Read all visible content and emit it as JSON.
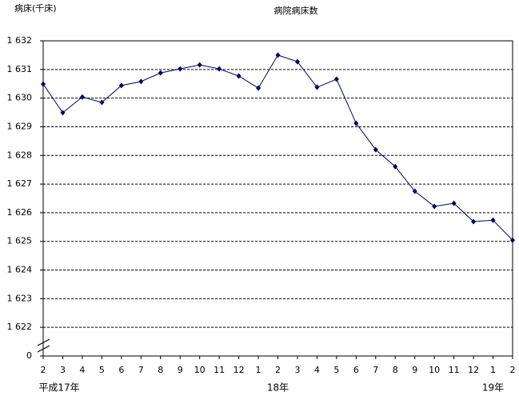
{
  "chart_data": {
    "type": "line",
    "title": "病院病床数",
    "y_label": "病床(千床)",
    "categories": [
      "2",
      "3",
      "4",
      "5",
      "6",
      "7",
      "8",
      "9",
      "10",
      "11",
      "12",
      "1",
      "2",
      "3",
      "4",
      "5",
      "6",
      "7",
      "8",
      "9",
      "10",
      "11",
      "12",
      "1",
      "2"
    ],
    "year_labels": [
      "平成17年",
      "18年",
      "19年"
    ],
    "series": [
      {
        "name": "病院病床数",
        "color": "#000066",
        "values": [
          1630.49,
          1629.49,
          1630.04,
          1629.85,
          1630.44,
          1630.58,
          1630.88,
          1631.02,
          1631.16,
          1631.02,
          1630.77,
          1630.35,
          1631.5,
          1631.27,
          1630.38,
          1630.66,
          1629.12,
          1628.2,
          1627.61,
          1626.75,
          1626.22,
          1626.33,
          1625.69,
          1625.74,
          1625.04
        ]
      }
    ],
    "ylim": [
      1621,
      1632
    ],
    "yticks": [
      0,
      {
        "value": 1622,
        "label": "1 622"
      },
      {
        "value": 1623,
        "label": "1 623"
      },
      {
        "value": 1624,
        "label": "1 624"
      },
      {
        "value": 1625,
        "label": "1 625"
      },
      {
        "value": 1626,
        "label": "1 626"
      },
      {
        "value": 1627,
        "label": "1 627"
      },
      {
        "value": 1628,
        "label": "1 628"
      },
      {
        "value": 1629,
        "label": "1 629"
      },
      {
        "value": 1630,
        "label": "1 630"
      },
      {
        "value": 1631,
        "label": "1 631"
      },
      {
        "value": 1632,
        "label": "1 632"
      }
    ],
    "axis_break": true,
    "grid": true
  }
}
